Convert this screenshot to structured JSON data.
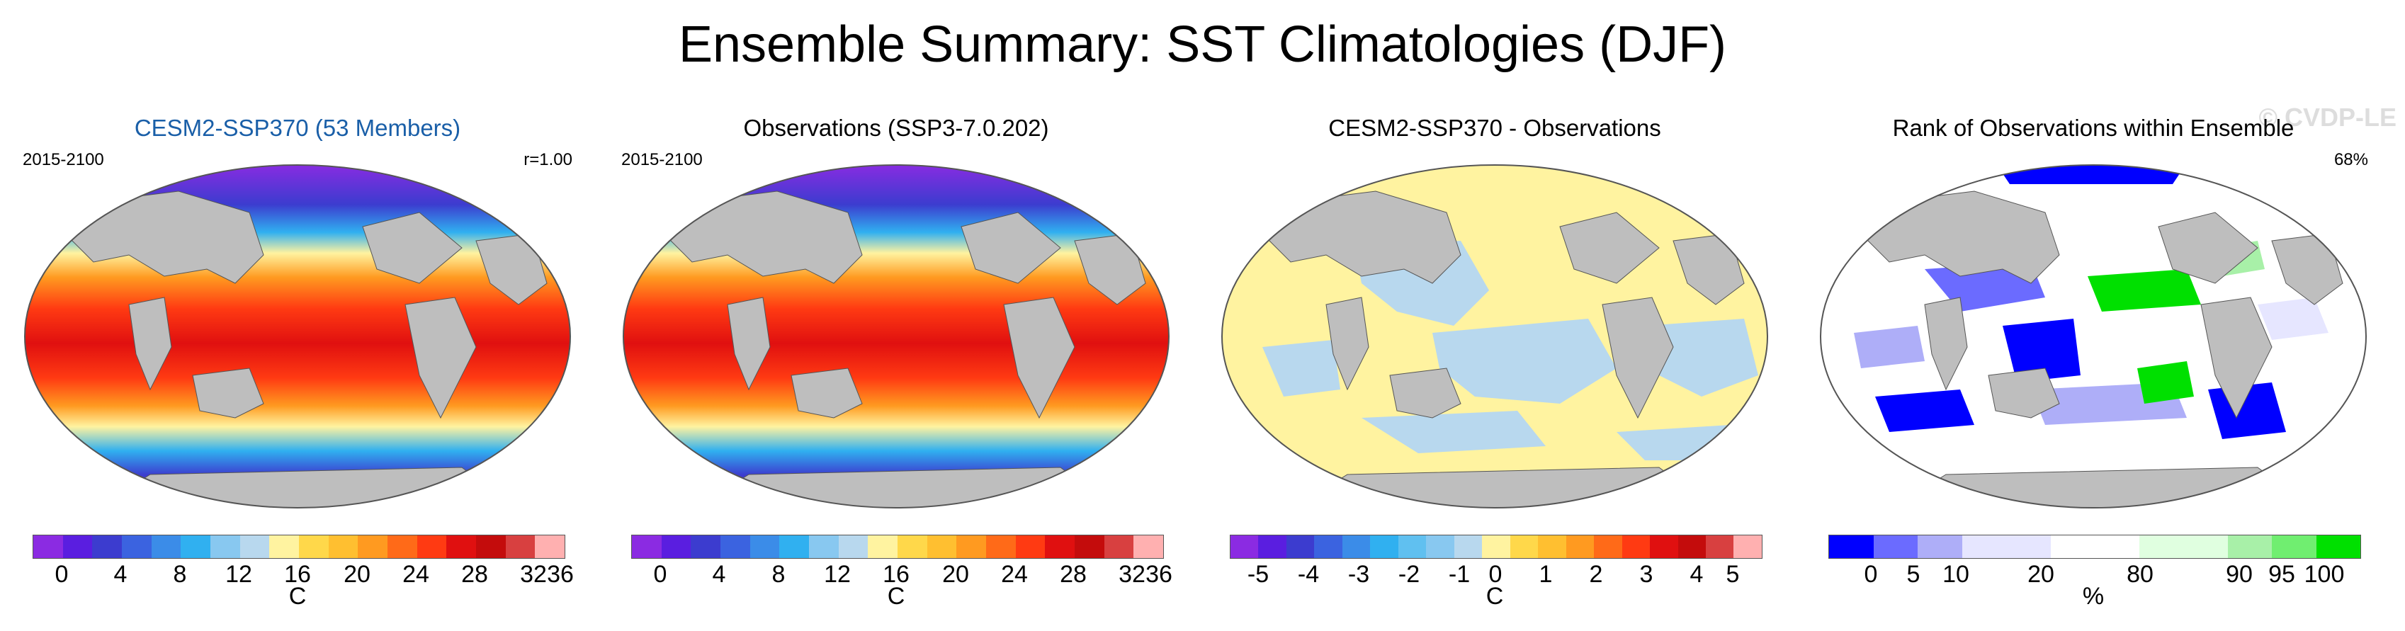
{
  "title": "Ensemble Summary: SST Climatologies (DJF)",
  "watermark": "© CVDP-LE",
  "colors": {
    "land": "#bebebe",
    "sst_scale": [
      "#8b2be2",
      "#5a1ee0",
      "#3c3ccf",
      "#3b63e0",
      "#3b8ce8",
      "#30b0f0",
      "#88c8f0",
      "#b8d8ee",
      "#fff3a0",
      "#ffd84a",
      "#ffbf30",
      "#ff9a20",
      "#ff6a18",
      "#ff3a12",
      "#e01010",
      "#c40c0c",
      "#d84040",
      "#ffb0b0"
    ],
    "diff_scale": [
      "#8b2be2",
      "#5a1ee0",
      "#3c3ccf",
      "#3b63e0",
      "#3b8ce8",
      "#30b0f0",
      "#60c0f0",
      "#88c8f0",
      "#b8d8ee",
      "#fff3a0",
      "#ffd84a",
      "#ffbf30",
      "#ff9a20",
      "#ff6a18",
      "#ff3a12",
      "#e01010",
      "#c40c0c",
      "#d84040",
      "#ffb0b0"
    ],
    "rank_scale": [
      "#0000ff",
      "#6b6bff",
      "#aeaef8",
      "#e6e6ff",
      "#ffffff",
      "#e0ffe0",
      "#a8f0a8",
      "#70ee70",
      "#00e000"
    ]
  },
  "panels": [
    {
      "title": "CESM2-SSP370 (53 Members)",
      "left_label": "2015-2100",
      "right_label": "r=1.00",
      "ticks": [
        "0",
        "4",
        "8",
        "12",
        "16",
        "20",
        "24",
        "28",
        "32",
        "36"
      ],
      "unit": "C"
    },
    {
      "title": "Observations (SSP3-7.0.202)",
      "left_label": "2015-2100",
      "right_label": "",
      "ticks": [
        "0",
        "4",
        "8",
        "12",
        "16",
        "20",
        "24",
        "28",
        "32",
        "36"
      ],
      "unit": "C"
    },
    {
      "title": "CESM2-SSP370 - Observations",
      "left_label": "",
      "right_label": "",
      "ticks": [
        "-5",
        "-4",
        "-3",
        "-2",
        "-1",
        "0",
        "1",
        "2",
        "3",
        "4",
        "5"
      ],
      "unit": "C"
    },
    {
      "title": "Rank of Observations within Ensemble",
      "left_label": "",
      "right_label": "68%",
      "ticks": [
        "0",
        "5",
        "10",
        "20",
        "80",
        "90",
        "95",
        "100"
      ],
      "unit": "%"
    }
  ]
}
